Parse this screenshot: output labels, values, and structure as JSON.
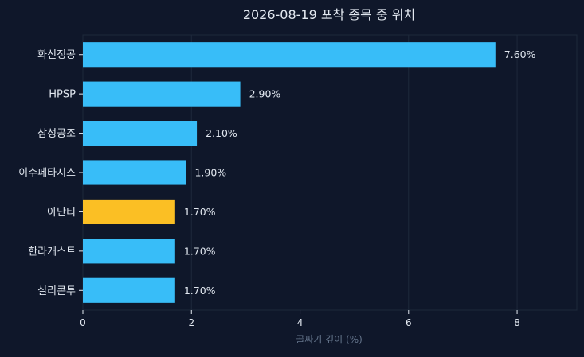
{
  "chart_data": {
    "type": "bar",
    "orientation": "horizontal",
    "title": "2026-08-19 포착 종목 중 위치",
    "xlabel": "골짜기 깊이 (%)",
    "ylabel": "",
    "xlim": [
      0,
      9.1
    ],
    "xticks": [
      0,
      2,
      4,
      6,
      8
    ],
    "grid": "vertical",
    "categories": [
      "화신정공",
      "HPSP",
      "삼성공조",
      "이수페타시스",
      "아난티",
      "한라캐스트",
      "실리콘투"
    ],
    "values": [
      7.6,
      2.9,
      2.1,
      1.9,
      1.7,
      1.7,
      1.7
    ],
    "value_labels": [
      "7.60%",
      "2.90%",
      "2.10%",
      "1.90%",
      "1.70%",
      "1.70%",
      "1.70%"
    ],
    "highlight": [
      "아난티"
    ],
    "colors": {
      "default": "#38bdf8",
      "highlight": "#fbbf24",
      "background": "#0f172a",
      "grid": "#1e293b",
      "text": "#e2e8f0",
      "axis_label": "#64748b"
    }
  }
}
